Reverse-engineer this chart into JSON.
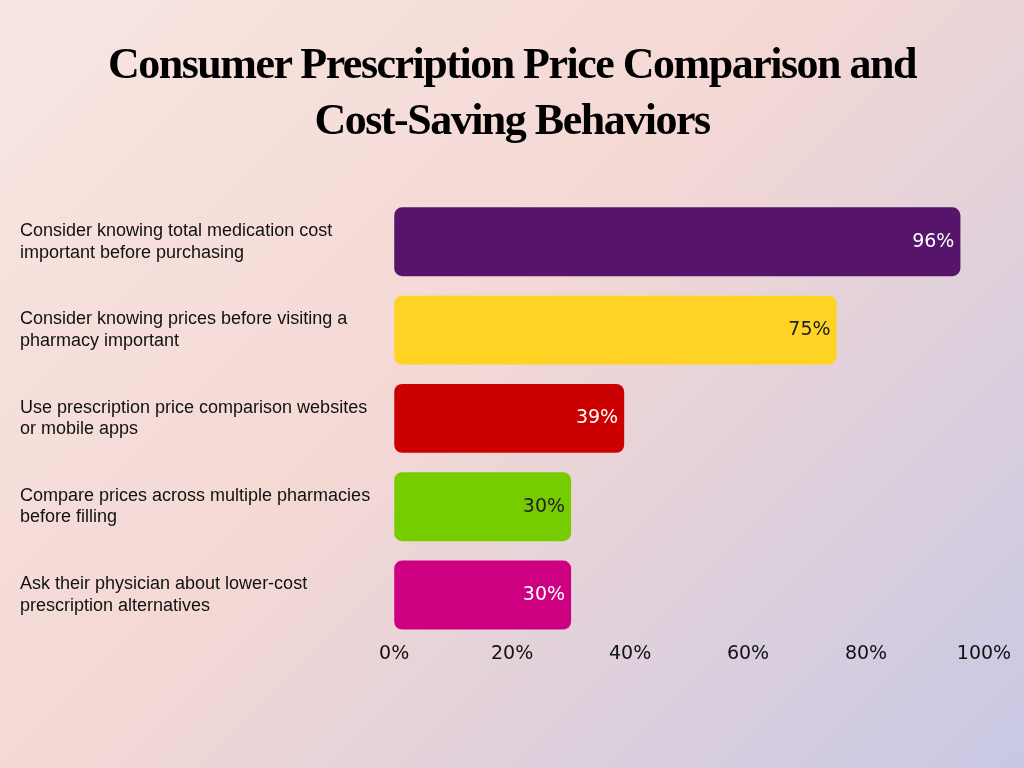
{
  "chart_data": {
    "type": "bar",
    "orientation": "horizontal",
    "title": "Consumer Prescription Price Comparison and Cost-Saving Behaviors",
    "categories": [
      "Consider knowing total medication cost important before purchasing",
      "Consider knowing prices before visiting a pharmacy important",
      "Use prescription price comparison websites or mobile apps",
      "Compare prices across multiple pharmacies before filling",
      "Ask their physician about lower-cost prescription alternatives"
    ],
    "values": [
      96,
      75,
      39,
      30,
      30
    ],
    "colors": [
      "#56146a",
      "#ffd324",
      "#cc0000",
      "#77cc00",
      "#cc0080"
    ],
    "value_labels": [
      "96%",
      "75%",
      "39%",
      "30%",
      "30%"
    ],
    "xlim": [
      0,
      100
    ],
    "xticks": [
      {
        "value": 0,
        "label": "0%"
      },
      {
        "value": 20,
        "label": "20%"
      },
      {
        "value": 40,
        "label": "40%"
      },
      {
        "value": 60,
        "label": "60%"
      },
      {
        "value": 80,
        "label": "80%"
      },
      {
        "value": 100,
        "label": "100%"
      }
    ],
    "grid": false,
    "legend": false
  }
}
